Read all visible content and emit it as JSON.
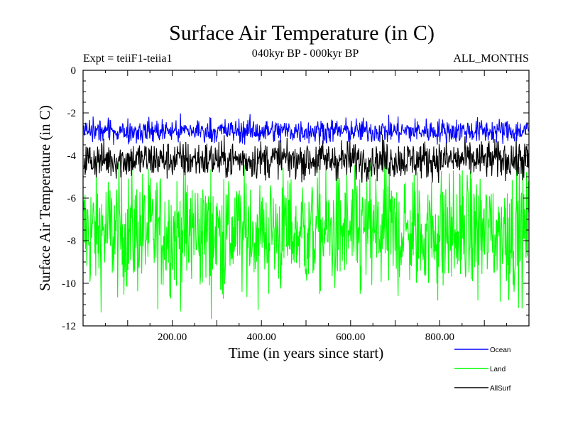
{
  "chart_data": {
    "type": "line",
    "title": "Surface Air Temperature (in C)",
    "subtitle_left": "Expt = teiiF1-teiia1",
    "subtitle_center": "040kyr BP - 000kyr BP",
    "subtitle_right": "ALL_MONTHS",
    "xlabel": "Time (in years since start)",
    "ylabel": "Surface Air Temperature (in C)",
    "xlim": [
      0,
      1000
    ],
    "ylim": [
      -12,
      0
    ],
    "x_ticks": [
      200,
      400,
      600,
      800
    ],
    "x_tick_labels": [
      "200.00",
      "400.00",
      "600.00",
      "800.00"
    ],
    "y_ticks": [
      0,
      -2,
      -4,
      -6,
      -8,
      -10,
      -12
    ],
    "y_tick_labels": [
      "0",
      "-2",
      "-4",
      "-6",
      "-8",
      "-10",
      "-12"
    ],
    "legend_position": "bottom-right",
    "series": [
      {
        "name": "Land",
        "color": "#00ff00",
        "mean": -7.6,
        "min": -11.7,
        "max": -4.3
      },
      {
        "name": "AllSurf",
        "color": "#000000",
        "mean": -4.2,
        "min": -5.3,
        "max": -3.0
      },
      {
        "name": "Ocean",
        "color": "#0000ff",
        "mean": -2.85,
        "min": -3.5,
        "max": -2.0
      }
    ],
    "legend": [
      {
        "name": "Ocean",
        "color": "#0000ff"
      },
      {
        "name": "Land",
        "color": "#00ff00"
      },
      {
        "name": "AllSurf",
        "color": "#000000"
      }
    ]
  }
}
